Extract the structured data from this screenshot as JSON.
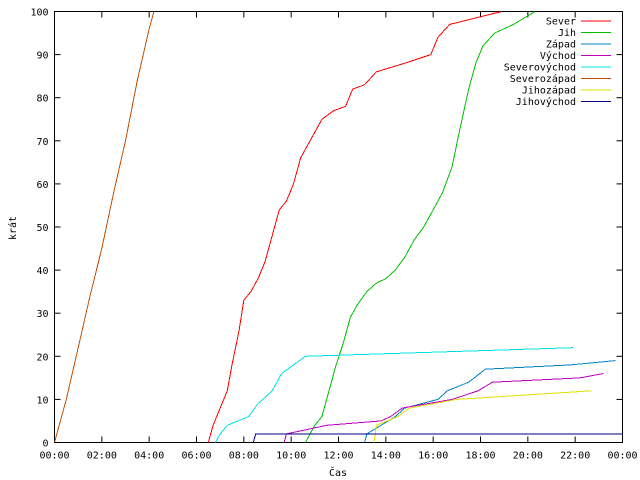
{
  "chart_data": {
    "type": "line",
    "xlabel": "Čas",
    "ylabel": "krát",
    "xlim": [
      0,
      24
    ],
    "ylim": [
      0,
      100
    ],
    "xticks": [
      {
        "value": 0,
        "label": "00:00"
      },
      {
        "value": 2,
        "label": "02:00"
      },
      {
        "value": 4,
        "label": "04:00"
      },
      {
        "value": 6,
        "label": "06:00"
      },
      {
        "value": 8,
        "label": "08:00"
      },
      {
        "value": 10,
        "label": "10:00"
      },
      {
        "value": 12,
        "label": "12:00"
      },
      {
        "value": 14,
        "label": "14:00"
      },
      {
        "value": 16,
        "label": "16:00"
      },
      {
        "value": 18,
        "label": "18:00"
      },
      {
        "value": 20,
        "label": "20:00"
      },
      {
        "value": 22,
        "label": "22:00"
      },
      {
        "value": 24,
        "label": "00:00"
      }
    ],
    "yticks": [
      0,
      10,
      20,
      30,
      40,
      50,
      60,
      70,
      80,
      90,
      100
    ],
    "grid": false,
    "legend_position": "top-right",
    "series": [
      {
        "name": "Sever",
        "color": "#ff0000",
        "points": [
          [
            6.5,
            0
          ],
          [
            6.7,
            4
          ],
          [
            7.0,
            8
          ],
          [
            7.3,
            12
          ],
          [
            7.5,
            18
          ],
          [
            7.8,
            26
          ],
          [
            8.0,
            33
          ],
          [
            8.3,
            35
          ],
          [
            8.6,
            38
          ],
          [
            8.9,
            42
          ],
          [
            9.2,
            48
          ],
          [
            9.5,
            54
          ],
          [
            9.8,
            56
          ],
          [
            10.1,
            60
          ],
          [
            10.4,
            66
          ],
          [
            10.7,
            69
          ],
          [
            11.0,
            72
          ],
          [
            11.3,
            75
          ],
          [
            11.8,
            77
          ],
          [
            12.3,
            78
          ],
          [
            12.6,
            82
          ],
          [
            13.1,
            83
          ],
          [
            13.6,
            86
          ],
          [
            14.8,
            88
          ],
          [
            15.9,
            90
          ],
          [
            16.2,
            94
          ],
          [
            16.7,
            97
          ],
          [
            18.9,
            100
          ]
        ]
      },
      {
        "name": "Jih",
        "color": "#00c000",
        "points": [
          [
            10.6,
            0
          ],
          [
            10.8,
            2
          ],
          [
            11.0,
            4
          ],
          [
            11.3,
            6
          ],
          [
            11.6,
            12
          ],
          [
            11.9,
            18
          ],
          [
            12.2,
            23
          ],
          [
            12.5,
            29
          ],
          [
            12.8,
            32
          ],
          [
            13.2,
            35
          ],
          [
            13.6,
            37
          ],
          [
            14.0,
            38
          ],
          [
            14.4,
            40
          ],
          [
            14.8,
            43
          ],
          [
            15.2,
            47
          ],
          [
            15.6,
            50
          ],
          [
            16.0,
            54
          ],
          [
            16.4,
            58
          ],
          [
            16.8,
            64
          ],
          [
            17.1,
            72
          ],
          [
            17.5,
            82
          ],
          [
            17.8,
            88
          ],
          [
            18.1,
            92
          ],
          [
            18.6,
            95
          ],
          [
            19.4,
            97
          ],
          [
            20.3,
            100
          ]
        ]
      },
      {
        "name": "Západ",
        "color": "#0080c0",
        "points": [
          [
            13.1,
            0
          ],
          [
            13.2,
            2
          ],
          [
            14.4,
            6
          ],
          [
            14.8,
            8
          ],
          [
            16.2,
            10
          ],
          [
            16.6,
            12
          ],
          [
            17.5,
            14
          ],
          [
            18.2,
            17
          ],
          [
            21.8,
            18
          ],
          [
            23.7,
            19
          ]
        ]
      },
      {
        "name": "Východ",
        "color": "#c000c0",
        "points": [
          [
            9.7,
            0
          ],
          [
            9.8,
            2
          ],
          [
            11.5,
            4
          ],
          [
            13.8,
            5
          ],
          [
            14.2,
            6
          ],
          [
            14.7,
            8
          ],
          [
            16.8,
            10
          ],
          [
            17.9,
            12
          ],
          [
            18.5,
            14
          ],
          [
            22.2,
            15
          ],
          [
            23.2,
            16
          ]
        ]
      },
      {
        "name": "Severovýchod",
        "color": "#00e0e0",
        "points": [
          [
            6.8,
            0
          ],
          [
            7.0,
            2
          ],
          [
            7.3,
            4
          ],
          [
            8.2,
            6
          ],
          [
            8.6,
            9
          ],
          [
            9.2,
            12
          ],
          [
            9.6,
            16
          ],
          [
            10.1,
            18
          ],
          [
            10.6,
            20
          ],
          [
            21.9,
            22
          ]
        ]
      },
      {
        "name": "Severozápad",
        "color": "#c05000",
        "points": [
          [
            0,
            0
          ],
          [
            0.5,
            10
          ],
          [
            1.0,
            22
          ],
          [
            1.5,
            34
          ],
          [
            2.0,
            45
          ],
          [
            2.5,
            58
          ],
          [
            3.0,
            70
          ],
          [
            3.5,
            84
          ],
          [
            4.0,
            96
          ],
          [
            4.2,
            100
          ]
        ]
      },
      {
        "name": "Jihozápad",
        "color": "#e0e000",
        "points": [
          [
            13.5,
            0
          ],
          [
            13.6,
            4
          ],
          [
            14.5,
            6
          ],
          [
            15.0,
            8
          ],
          [
            17.0,
            10
          ],
          [
            22.7,
            12
          ]
        ]
      },
      {
        "name": "Jihovýchod",
        "color": "#000080",
        "points": [
          [
            8.4,
            0
          ],
          [
            8.5,
            2
          ],
          [
            24,
            2
          ]
        ]
      }
    ]
  }
}
